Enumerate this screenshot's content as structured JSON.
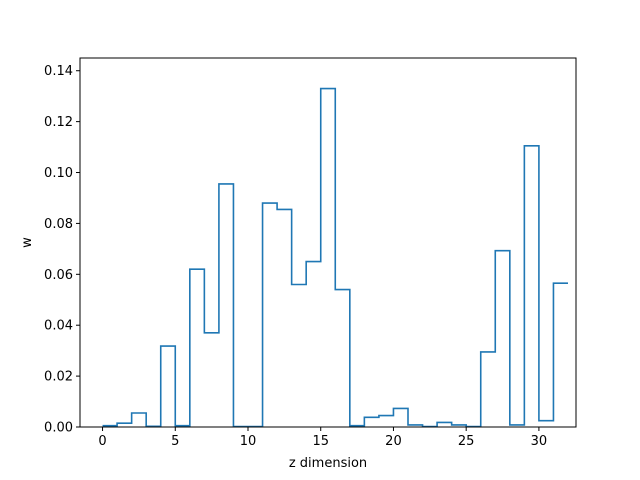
{
  "chart_data": {
    "type": "bar",
    "style": "step-histogram",
    "title": "",
    "xlabel": "z dimension",
    "ylabel": "w",
    "xlim": [
      -1.55,
      32.55
    ],
    "ylim": [
      0,
      0.145
    ],
    "grid": false,
    "x_ticks": [
      0,
      5,
      10,
      15,
      20,
      25,
      30
    ],
    "y_ticks": [
      0.0,
      0.02,
      0.04,
      0.06,
      0.08,
      0.1,
      0.12,
      0.14
    ],
    "series": [
      {
        "color": "#1f77b4",
        "x": [
          0,
          1,
          2,
          3,
          4,
          5,
          6,
          7,
          8,
          9,
          10,
          11,
          12,
          13,
          14,
          15,
          16,
          17,
          18,
          19,
          20,
          21,
          22,
          23,
          24,
          25,
          26,
          27,
          28,
          29,
          30,
          31
        ],
        "values": [
          0.0005,
          0.0015,
          0.0055,
          0.0003,
          0.0318,
          0.0005,
          0.062,
          0.037,
          0.0955,
          0.0002,
          0.0002,
          0.088,
          0.0855,
          0.056,
          0.065,
          0.133,
          0.054,
          0.0005,
          0.0038,
          0.0045,
          0.0073,
          0.0008,
          0.0002,
          0.0018,
          0.0008,
          0.0002,
          0.0295,
          0.0693,
          0.0008,
          0.1105,
          0.0025,
          0.0565
        ]
      }
    ]
  }
}
